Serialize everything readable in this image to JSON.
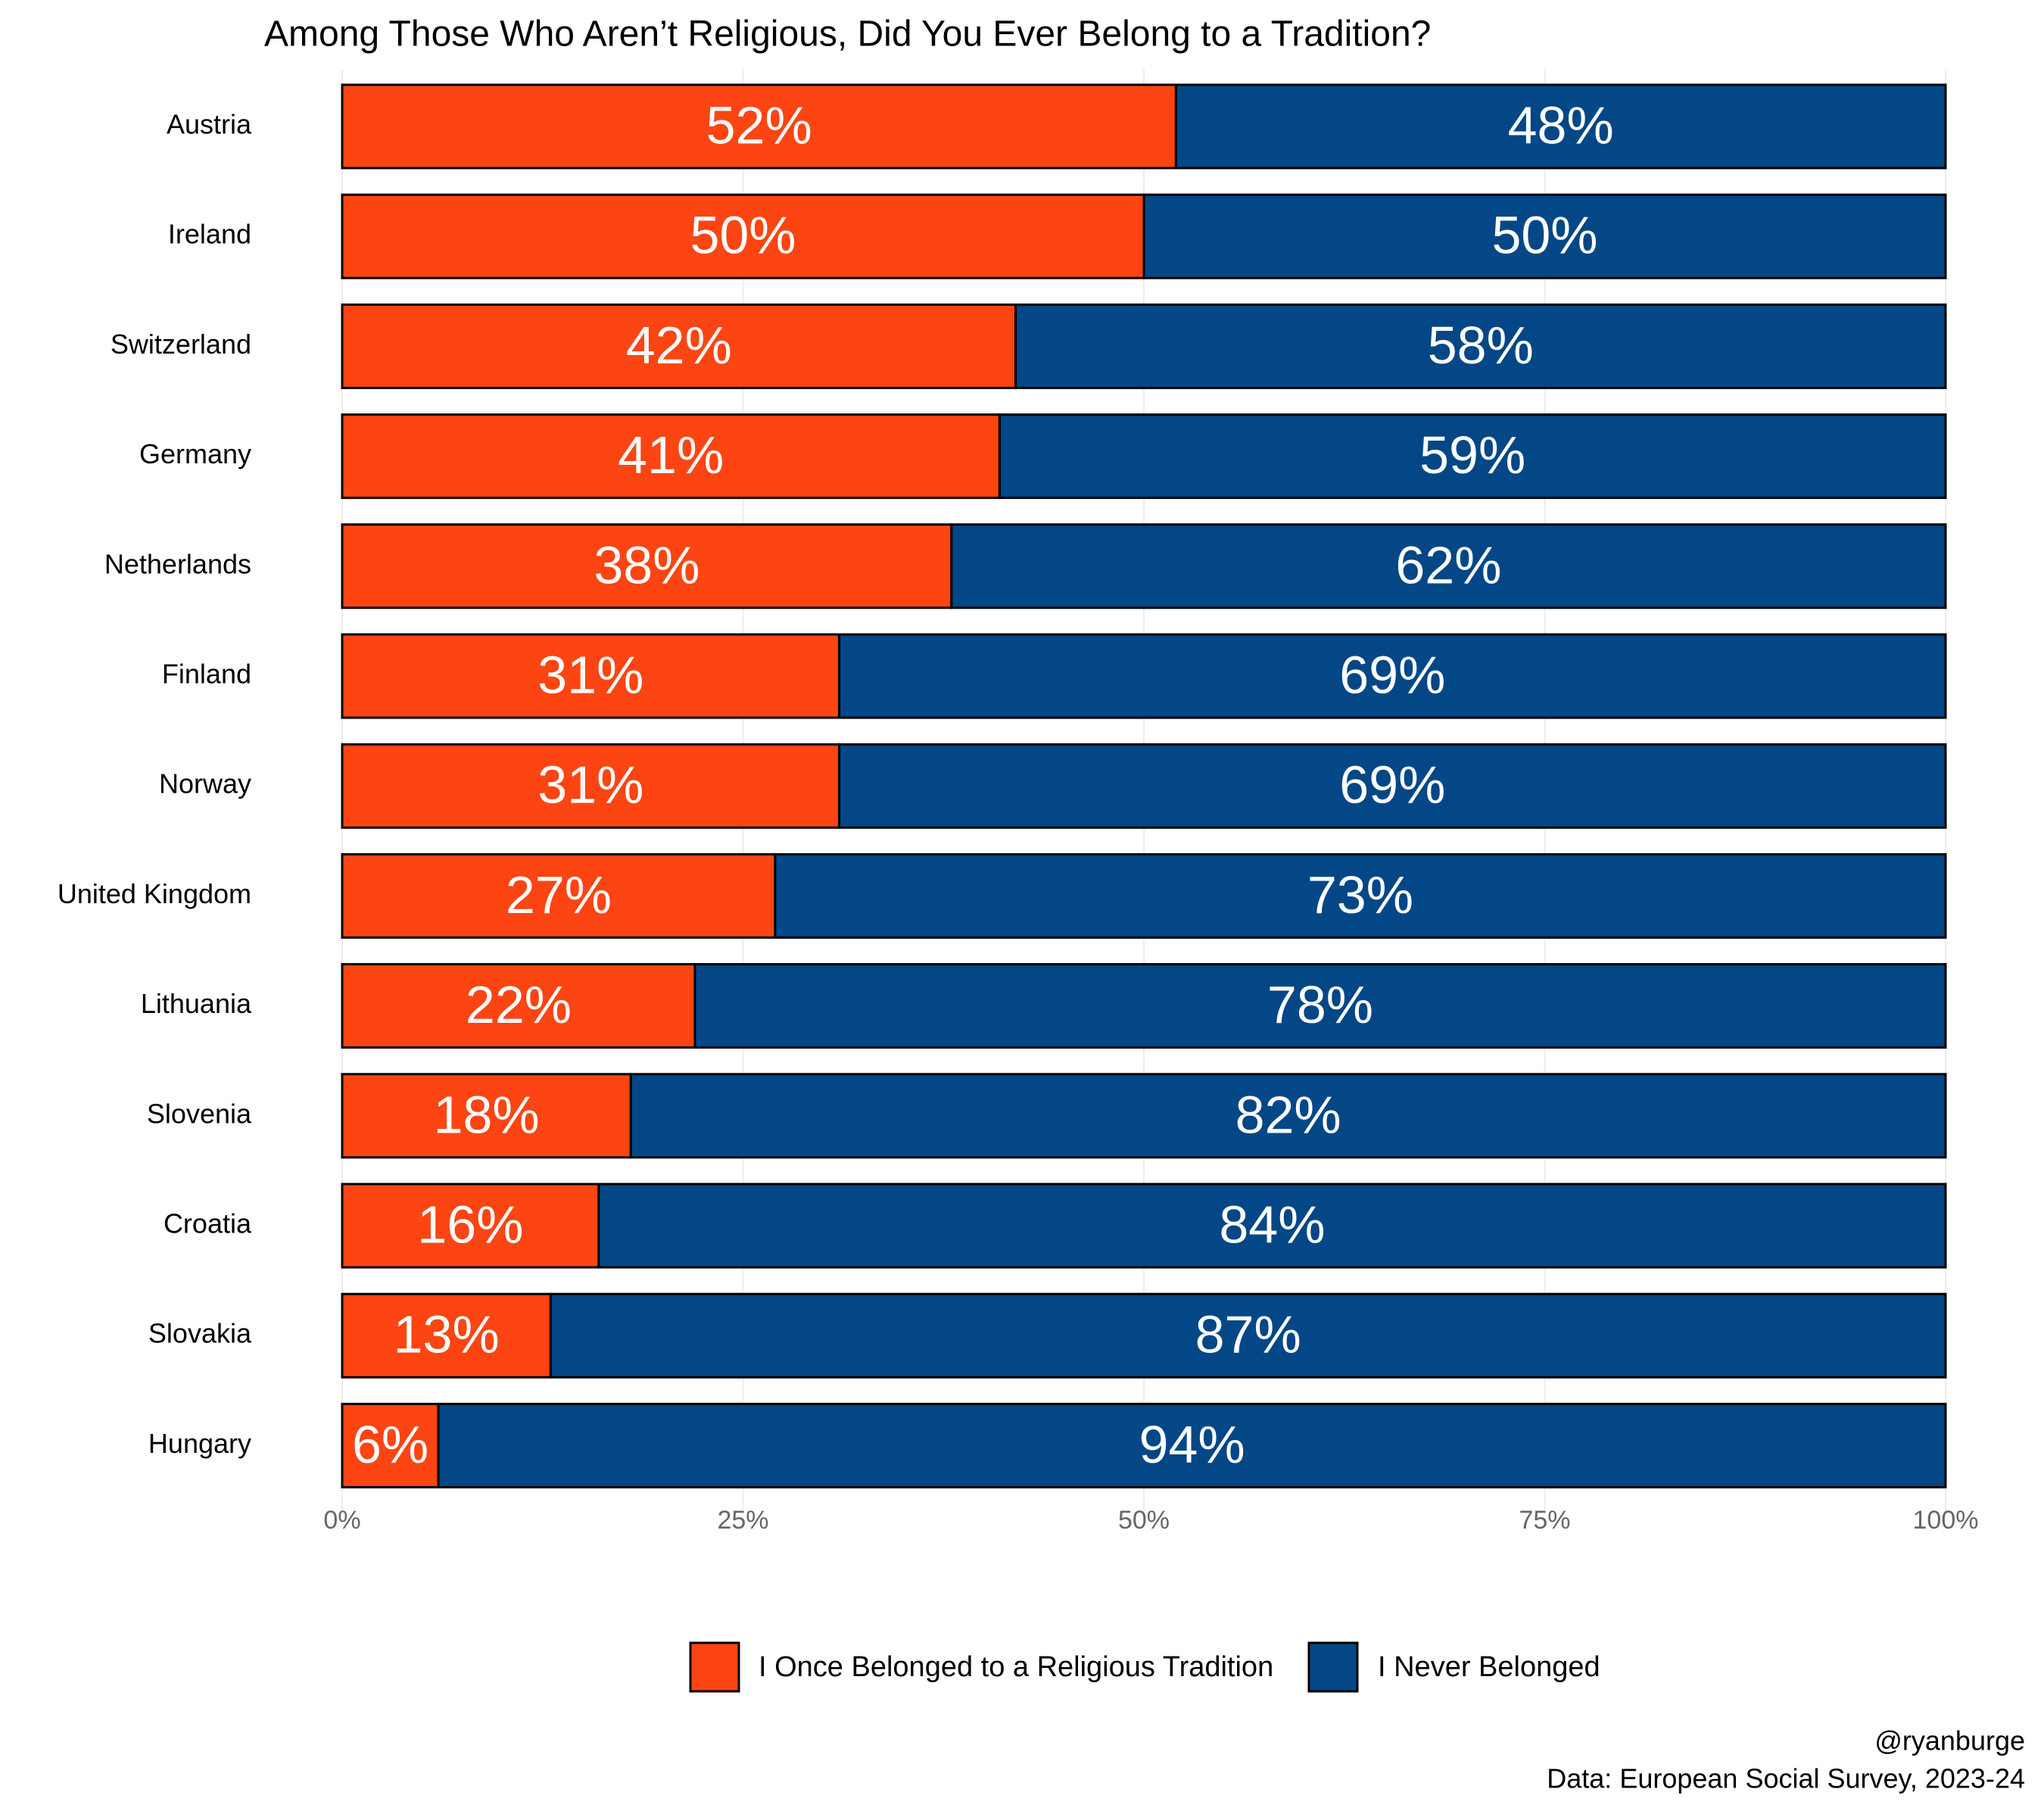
{
  "chart_data": {
    "type": "stacked_bar",
    "orientation": "horizontal",
    "title": "Among Those Who Aren’t Religious, Did You Ever Belong to a Tradition?",
    "categories": [
      "Austria",
      "Ireland",
      "Switzerland",
      "Germany",
      "Netherlands",
      "Finland",
      "Norway",
      "United Kingdom",
      "Lithuania",
      "Slovenia",
      "Croatia",
      "Slovakia",
      "Hungary"
    ],
    "series": [
      {
        "name": "I Once Belonged to a Religious Tradition",
        "color": "#fc4512",
        "values": [
          52,
          50,
          42,
          41,
          38,
          31,
          31,
          27,
          22,
          18,
          16,
          13,
          6
        ],
        "value_labels": [
          "52%",
          "50%",
          "42%",
          "41%",
          "38%",
          "31%",
          "31%",
          "27%",
          "22%",
          "18%",
          "16%",
          "13%",
          "6%"
        ]
      },
      {
        "name": "I Never Belonged",
        "color": "#034787",
        "values": [
          48,
          50,
          58,
          59,
          62,
          69,
          69,
          73,
          78,
          82,
          84,
          87,
          94
        ],
        "value_labels": [
          "48%",
          "50%",
          "58%",
          "59%",
          "62%",
          "69%",
          "69%",
          "73%",
          "78%",
          "82%",
          "84%",
          "87%",
          "94%"
        ]
      }
    ],
    "xlim": [
      0,
      100
    ],
    "xticks": [
      {
        "value": 0,
        "label": "0%"
      },
      {
        "value": 25,
        "label": "25%"
      },
      {
        "value": 50,
        "label": "50%"
      },
      {
        "value": 75,
        "label": "75%"
      },
      {
        "value": 100,
        "label": "100%"
      }
    ],
    "grid": true,
    "legend": "bottom",
    "caption": [
      "@ryanburge",
      "Data: European Social Survey, 2023-24"
    ]
  }
}
